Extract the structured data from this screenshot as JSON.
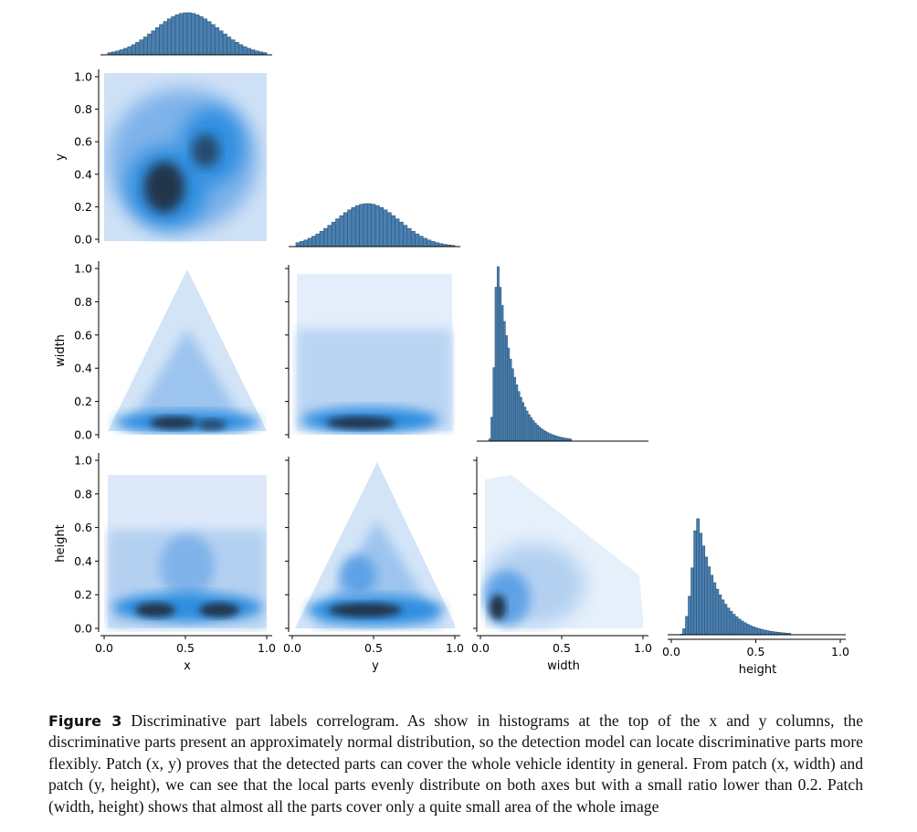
{
  "figure": {
    "variables": [
      "x",
      "y",
      "width",
      "height"
    ],
    "colors": {
      "bar_fill": "#4a7fb0",
      "bar_edge": "#2d5779",
      "density_light": "#c6dcf5",
      "density_mid": "#2f8ee0",
      "density_dark": "#23364c"
    }
  },
  "caption": {
    "label": "Figure 3",
    "text": "Discriminative part labels correlogram. As show in histograms at the top of the x and y columns, the discriminative parts present an approximately normal distribution, so the detection model can locate discriminative parts more flexibly. Patch (x, y) proves that the detected parts can cover the whole vehicle identity in general. From patch (x, width) and patch (y, height), we can see that the local parts evenly distribute on both axes but with a small ratio lower than 0.2. Patch (width, height) shows that almost all the parts cover only a quite small area of the whole image"
  },
  "chart_data": {
    "type": "heatmap",
    "kind": "pairplot-corner",
    "variables": [
      "x",
      "y",
      "width",
      "height"
    ],
    "xlabels": [
      "x",
      "y",
      "width",
      "height"
    ],
    "ylabels": [
      "",
      "y",
      "width",
      "height"
    ],
    "xlim": [
      0.0,
      1.0
    ],
    "ylim": [
      0.0,
      1.0
    ],
    "ticks": [
      0.0,
      0.2,
      0.4,
      0.6,
      0.8,
      1.0
    ],
    "tick_labels": [
      "0.0",
      "0.2",
      "0.4",
      "0.6",
      "0.8",
      "1.0"
    ],
    "x_ticks": [
      0.0,
      0.5,
      1.0
    ],
    "x_tick_labels": [
      "0.0",
      "0.5",
      "1.0"
    ],
    "diagonal": [
      {
        "var": "x",
        "type": "histogram",
        "bins": 40,
        "x_range": [
          0.0,
          1.0
        ],
        "mean": 0.5,
        "sd": 0.2
      },
      {
        "var": "y",
        "type": "histogram",
        "bins": 40,
        "x_range": [
          0.0,
          1.0
        ],
        "mean": 0.45,
        "sd": 0.2
      },
      {
        "var": "width",
        "type": "histogram",
        "bins": 40,
        "x_range": [
          0.03,
          0.55
        ],
        "peak": 0.08,
        "skew": "right"
      },
      {
        "var": "height",
        "type": "histogram",
        "bins": 40,
        "x_range": [
          0.03,
          0.7
        ],
        "peak": 0.13,
        "skew": "right"
      }
    ],
    "off_diagonal": [
      {
        "x": "x",
        "y": "y",
        "type": "2d-histogram",
        "shape": "square",
        "dense_centers": [
          [
            0.38,
            0.3
          ],
          [
            0.55,
            0.55
          ]
        ]
      },
      {
        "x": "x",
        "y": "width",
        "type": "2d-histogram",
        "shape": "triangle",
        "dense_centers": [
          [
            0.5,
            0.08
          ]
        ]
      },
      {
        "x": "y",
        "y": "width",
        "type": "2d-histogram",
        "shape": "band",
        "dense_centers": [
          [
            0.4,
            0.08
          ]
        ]
      },
      {
        "x": "x",
        "y": "height",
        "type": "2d-histogram",
        "shape": "band",
        "dense_centers": [
          [
            0.35,
            0.12
          ],
          [
            0.65,
            0.12
          ]
        ]
      },
      {
        "x": "y",
        "y": "height",
        "type": "2d-histogram",
        "shape": "triangle",
        "dense_centers": [
          [
            0.4,
            0.12
          ]
        ]
      },
      {
        "x": "width",
        "y": "height",
        "type": "2d-histogram",
        "shape": "skewed",
        "dense_centers": [
          [
            0.07,
            0.12
          ]
        ]
      }
    ]
  }
}
